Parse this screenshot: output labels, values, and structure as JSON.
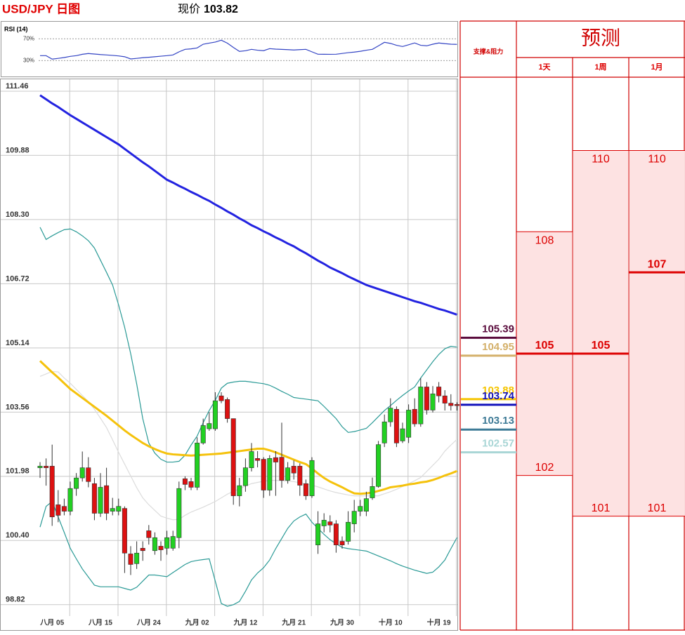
{
  "title": "USD/JPY 日图",
  "price_label": "现价",
  "price": 103.82,
  "chart_data": [
    {
      "type": "candlestick",
      "categories": [
        null,
        null,
        "八月 05",
        null,
        null,
        null,
        null,
        null,
        null,
        null,
        "八月 15",
        null,
        null,
        null,
        null,
        null,
        null,
        null,
        "八月 24",
        null,
        null,
        null,
        null,
        null,
        null,
        null,
        "九月 02",
        null,
        null,
        null,
        null,
        null,
        null,
        null,
        "九月 12",
        null,
        null,
        null,
        null,
        null,
        null,
        null,
        "九月 21",
        null,
        null,
        null,
        null,
        null,
        null,
        null,
        "九月 30",
        null,
        null,
        null,
        null,
        null,
        null,
        null,
        "十月 10",
        null,
        null,
        null,
        null,
        null,
        null,
        null,
        "十月 19",
        null,
        null,
        null
      ],
      "open": [
        102.19,
        102.23,
        102.23,
        101.28,
        101.24,
        101.12,
        101.68,
        101.94,
        102.19,
        101.8,
        101.07,
        101.75,
        101.12,
        101.12,
        101.19,
        100.07,
        99.83,
        100.21,
        100.64,
        100.15,
        100.26,
        100.21,
        100.21,
        100.47,
        101.92,
        101.85,
        101.71,
        102.8,
        103.15,
        103.15,
        103.96,
        103.87,
        103.4,
        101.5,
        101.75,
        102.19,
        102.42,
        102.4,
        101.64,
        102.44,
        102.45,
        101.88,
        102.23,
        102.23,
        101.8,
        101.5,
        100.29,
        100.76,
        100.86,
        100.81,
        100.38,
        100.38,
        100.81,
        101.12,
        101.12,
        101.45,
        101.73,
        102.8,
        103.32,
        103.63,
        102.85,
        102.94,
        103.63,
        103.27,
        104.18,
        103.61,
        104.18,
        103.96,
        103.78,
        103.75
      ],
      "high": [
        102.33,
        102.42,
        102.76,
        101.64,
        101.43,
        101.85,
        102.06,
        102.59,
        102.45,
        101.94,
        102.06,
        102.19,
        101.45,
        101.43,
        101.24,
        100.26,
        100.38,
        100.38,
        100.78,
        100.6,
        100.38,
        100.64,
        100.64,
        101.85,
        101.98,
        101.94,
        102.94,
        103.4,
        103.56,
        104.05,
        104.05,
        103.92,
        103.4,
        101.94,
        102.42,
        102.8,
        102.6,
        102.45,
        102.5,
        102.6,
        103.3,
        102.33,
        102.37,
        102.3,
        101.9,
        102.45,
        101.12,
        101.07,
        101.02,
        100.9,
        100.5,
        101.12,
        101.4,
        101.4,
        101.6,
        101.95,
        102.85,
        103.5,
        103.9,
        103.7,
        103.3,
        103.75,
        103.9,
        104.4,
        104.3,
        104.2,
        104.3,
        104.1,
        104.0,
        103.8
      ],
      "low": [
        101.94,
        101.75,
        100.76,
        100.85,
        101.02,
        101.02,
        101.5,
        101.85,
        101.71,
        100.9,
        100.98,
        100.9,
        101.02,
        101.02,
        99.6,
        99.55,
        99.7,
        99.9,
        100.3,
        100.05,
        99.9,
        100.05,
        100.15,
        100.21,
        101.64,
        101.64,
        101.64,
        102.76,
        103.1,
        103.1,
        103.78,
        103.3,
        101.28,
        101.24,
        101.6,
        102.1,
        102.2,
        101.45,
        101.5,
        101.5,
        101.7,
        101.8,
        101.9,
        101.5,
        101.4,
        101.45,
        100.07,
        100.6,
        100.6,
        100.1,
        100.2,
        100.3,
        100.6,
        101.0,
        101.0,
        101.4,
        101.7,
        102.7,
        103.2,
        102.7,
        102.8,
        102.8,
        103.2,
        103.2,
        103.5,
        103.55,
        103.8,
        103.6,
        103.6,
        103.6
      ],
      "close": [
        102.23,
        102.19,
        100.98,
        101.02,
        101.12,
        101.68,
        101.94,
        102.19,
        101.85,
        101.07,
        101.71,
        101.07,
        101.19,
        101.24,
        100.09,
        99.81,
        100.09,
        100.15,
        100.47,
        100.47,
        100.17,
        100.47,
        100.5,
        101.68,
        101.78,
        101.71,
        102.8,
        103.23,
        103.28,
        103.84,
        103.84,
        103.4,
        101.5,
        101.75,
        102.19,
        102.59,
        102.37,
        101.64,
        102.42,
        102.33,
        101.88,
        102.19,
        102.06,
        101.76,
        101.5,
        102.37,
        100.81,
        100.9,
        100.78,
        100.29,
        100.29,
        100.85,
        101.12,
        101.24,
        101.43,
        101.73,
        102.76,
        103.32,
        103.66,
        102.8,
        103.15,
        103.61,
        103.27,
        104.18,
        103.61,
        104.01,
        103.96,
        103.78,
        103.72,
        103.72
      ],
      "up_color": "#22d022",
      "down_color": "#dd1111",
      "series": [
        {
          "color": "#2323e0",
          "weight": "bold",
          "values": [
            111.36,
            111.26,
            111.16,
            111.07,
            110.97,
            110.87,
            110.78,
            110.69,
            110.6,
            110.51,
            110.42,
            110.33,
            110.24,
            110.15,
            110.04,
            109.93,
            109.82,
            109.71,
            109.61,
            109.5,
            109.39,
            109.28,
            109.21,
            109.13,
            109.06,
            108.98,
            108.91,
            108.83,
            108.76,
            108.67,
            108.59,
            108.5,
            108.42,
            108.33,
            108.25,
            108.16,
            108.09,
            108.01,
            107.94,
            107.86,
            107.79,
            107.71,
            107.64,
            107.55,
            107.47,
            107.38,
            107.29,
            107.21,
            107.12,
            107.05,
            106.98,
            106.9,
            106.83,
            106.76,
            106.69,
            106.64,
            106.59,
            106.54,
            106.49,
            106.44,
            106.39,
            106.34,
            106.29,
            106.25,
            106.2,
            106.15,
            106.1,
            106.06,
            106.01,
            105.96
          ]
        },
        {
          "color": "#f5c20c",
          "weight": "bold",
          "values": [
            104.82,
            104.68,
            104.54,
            104.41,
            104.27,
            104.13,
            104.02,
            103.91,
            103.8,
            103.69,
            103.58,
            103.47,
            103.35,
            103.23,
            103.11,
            103.0,
            102.9,
            102.8,
            102.72,
            102.65,
            102.59,
            102.54,
            102.52,
            102.51,
            102.5,
            102.49,
            102.5,
            102.51,
            102.52,
            102.53,
            102.54,
            102.56,
            102.58,
            102.6,
            102.62,
            102.64,
            102.66,
            102.66,
            102.62,
            102.57,
            102.51,
            102.45,
            102.39,
            102.33,
            102.28,
            102.17,
            102.05,
            101.94,
            101.85,
            101.78,
            101.71,
            101.63,
            101.56,
            101.55,
            101.56,
            101.58,
            101.62,
            101.66,
            101.71,
            101.73,
            101.75,
            101.78,
            101.8,
            101.83,
            101.85,
            101.89,
            101.94,
            102.0,
            102.05,
            102.11
          ]
        },
        {
          "color": "#2a9a96",
          "weight": "thin",
          "values": [
            108.11,
            107.81,
            107.9,
            107.98,
            108.05,
            108.07,
            108.0,
            107.9,
            107.78,
            107.6,
            107.3,
            107.0,
            106.69,
            106.2,
            105.65,
            105.0,
            104.25,
            103.4,
            102.8,
            102.55,
            102.4,
            102.33,
            102.33,
            102.35,
            102.5,
            102.75,
            102.97,
            103.3,
            103.6,
            103.85,
            104.15,
            104.27,
            104.3,
            104.32,
            104.32,
            104.3,
            104.28,
            104.26,
            104.22,
            104.15,
            104.07,
            104.0,
            103.92,
            103.9,
            103.88,
            103.86,
            103.84,
            103.7,
            103.55,
            103.4,
            103.2,
            103.06,
            103.08,
            103.12,
            103.16,
            103.3,
            103.45,
            103.6,
            103.72,
            103.85,
            103.97,
            104.08,
            104.18,
            104.4,
            104.6,
            104.8,
            104.98,
            105.12,
            105.18,
            105.16
          ]
        },
        {
          "color": "#2a9a96",
          "weight": "thin",
          "values": [
            100.73,
            101.24,
            101.36,
            100.98,
            100.6,
            100.21,
            99.95,
            99.7,
            99.5,
            99.3,
            99.26,
            99.26,
            99.26,
            99.26,
            99.22,
            99.18,
            99.25,
            99.4,
            99.55,
            99.55,
            99.53,
            99.51,
            99.61,
            99.71,
            99.81,
            99.88,
            99.91,
            99.93,
            99.95,
            99.4,
            98.85,
            98.78,
            98.82,
            98.9,
            99.15,
            99.43,
            99.6,
            99.73,
            99.92,
            100.2,
            100.45,
            100.7,
            100.88,
            100.98,
            101.05,
            100.85,
            100.7,
            100.55,
            100.42,
            100.32,
            100.23,
            100.2,
            100.18,
            100.16,
            100.14,
            100.08,
            100.02,
            99.96,
            99.9,
            99.83,
            99.77,
            99.72,
            99.67,
            99.63,
            99.59,
            99.62,
            99.75,
            99.92,
            100.2,
            100.47
          ]
        },
        {
          "color": "#dcdcdc",
          "weight": "thin",
          "values": [
            104.44,
            104.5,
            104.56,
            104.55,
            104.4,
            104.27,
            104.12,
            103.97,
            103.82,
            103.63,
            103.41,
            103.18,
            102.88,
            102.57,
            102.28,
            101.99,
            101.7,
            101.45,
            101.28,
            101.14,
            101.0,
            100.95,
            100.91,
            100.92,
            101.02,
            101.1,
            101.16,
            101.22,
            101.29,
            101.36,
            101.45,
            101.54,
            101.61,
            101.67,
            101.74,
            101.8,
            101.83,
            101.86,
            101.88,
            101.88,
            101.87,
            101.86,
            101.85,
            101.82,
            101.79,
            101.76,
            101.72,
            101.67,
            101.62,
            101.58,
            101.55,
            101.52,
            101.5,
            101.5,
            101.5,
            101.5,
            101.5,
            101.55,
            101.6,
            101.66,
            101.73,
            101.8,
            101.87,
            101.95,
            102.1,
            102.25,
            102.4,
            102.6,
            102.75,
            102.89
          ]
        }
      ],
      "ylim": [
        98.54,
        111.77
      ],
      "yticks": [
        111.46,
        109.88,
        {
          "value": 108.3,
          "label": "108.30"
        },
        106.72,
        105.14,
        103.56,
        101.98,
        {
          "value": 100.4,
          "label": "100.40"
        },
        98.82
      ],
      "grid": true,
      "levels": {
        "title": "支撑&阻力",
        "items": [
          {
            "value": 105.39,
            "color": "#5a0b3c"
          },
          {
            "value": 104.95,
            "color": "#d4b06a"
          },
          {
            "value": 103.88,
            "color": "#f5c400"
          },
          {
            "value": 103.74,
            "color": "#1111bb"
          },
          {
            "value": 103.13,
            "color": "#3d7a96"
          },
          {
            "value": 102.57,
            "color": "#a9d6d6"
          }
        ]
      },
      "forecast": {
        "title": "预测",
        "color": "#dd0000",
        "fill": "#fde2e2",
        "columns": [
          {
            "label": "1天",
            "high": 108,
            "mid": 105,
            "low": 102
          },
          {
            "label": "1周",
            "high": 110,
            "mid": 105,
            "low": 101
          },
          {
            "label": "1月",
            "high": 110,
            "mid": 107,
            "low": 101
          }
        ]
      }
    },
    {
      "type": "line",
      "title": "RSI (14)",
      "color": "#3344c4",
      "values": [
        39.0,
        39.0,
        32.6,
        34.0,
        35.5,
        37.7,
        39.0,
        41.5,
        42.9,
        42.0,
        41.0,
        40.3,
        39.5,
        38.5,
        37.0,
        33.0,
        34.0,
        35.2,
        36.0,
        37.0,
        38.0,
        39.0,
        40.3,
        46.0,
        50.6,
        51.5,
        53.2,
        60.0,
        62.0,
        64.0,
        67.4,
        62.0,
        54.0,
        46.8,
        48.0,
        50.6,
        49.0,
        48.1,
        51.9,
        51.0,
        50.5,
        50.0,
        49.4,
        50.0,
        50.6,
        46.0,
        41.6,
        41.5,
        41.4,
        41.6,
        43.0,
        44.5,
        45.5,
        47.0,
        49.0,
        50.6,
        57.0,
        63.5,
        61.5,
        58.0,
        55.8,
        59.0,
        62.3,
        58.0,
        57.1,
        60.0,
        62.3,
        61.0,
        60.0,
        59.7
      ],
      "ylim": [
        2,
        100
      ],
      "yticks": [
        {
          "value": 70,
          "label": "70%"
        },
        {
          "value": 30,
          "label": "30%"
        }
      ]
    }
  ]
}
